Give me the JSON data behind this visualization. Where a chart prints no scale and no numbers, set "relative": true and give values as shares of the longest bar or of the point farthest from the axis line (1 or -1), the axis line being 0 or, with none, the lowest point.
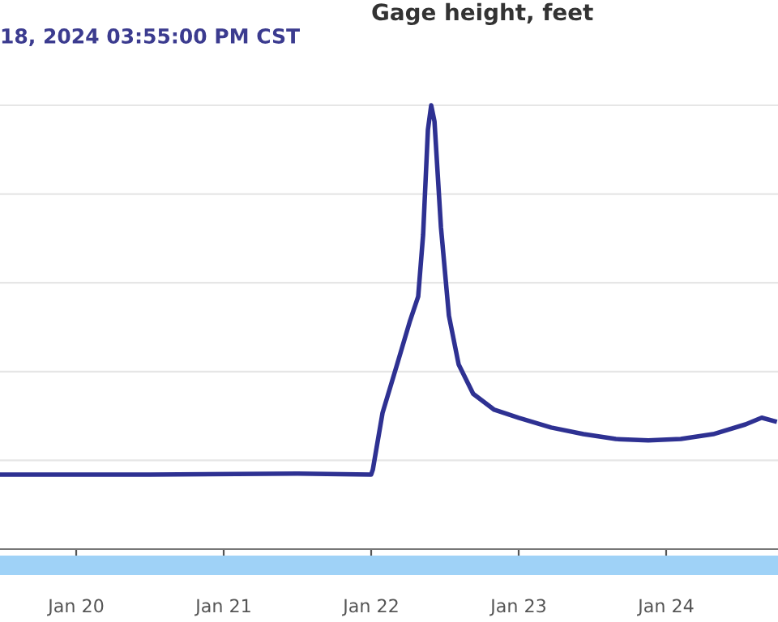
{
  "chart_data": {
    "type": "line",
    "title": "Gage height, feet",
    "subtitle": "18, 2024 03:55:00 PM CST",
    "relative": true,
    "grid": "y",
    "marker": "none",
    "line_style": "solid",
    "xlim": [
      "2024-01-19T11:36",
      "2024-01-24T18:12"
    ],
    "xticks": [
      {
        "value": "2024-01-20",
        "label": "Jan 20"
      },
      {
        "value": "2024-01-21",
        "label": "Jan 21"
      },
      {
        "value": "2024-01-22",
        "label": "Jan 22"
      },
      {
        "value": "2024-01-23",
        "label": "Jan 23"
      },
      {
        "value": "2024-01-24",
        "label": "Jan 24"
      }
    ],
    "x": [
      "2024-01-19T11:36",
      "2024-01-20T12:00",
      "2024-01-21T12:00",
      "2024-01-22T00:00",
      "2024-01-22T00:16",
      "2024-01-22T01:51",
      "2024-01-22T04:13",
      "2024-01-22T06:20",
      "2024-01-22T07:39",
      "2024-01-22T08:27",
      "2024-01-22T09:14",
      "2024-01-22T09:46",
      "2024-01-22T10:18",
      "2024-01-22T11:21",
      "2024-01-22T12:39",
      "2024-01-22T14:14",
      "2024-01-22T16:36",
      "2024-01-22T20:02",
      "2024-01-23T00:00",
      "2024-01-23T05:17",
      "2024-01-23T10:33",
      "2024-01-23T15:49",
      "2024-01-23T21:06",
      "2024-01-24T02:22",
      "2024-01-24T07:39",
      "2024-01-24T12:55",
      "2024-01-24T15:33",
      "2024-01-24T17:40"
    ],
    "series": [
      {
        "color": "#2e3192",
        "values": [
          0.168,
          0.168,
          0.17,
          0.168,
          0.179,
          0.307,
          0.416,
          0.515,
          0.569,
          0.708,
          0.945,
          1.0,
          0.964,
          0.726,
          0.526,
          0.416,
          0.35,
          0.314,
          0.296,
          0.274,
          0.259,
          0.248,
          0.245,
          0.248,
          0.259,
          0.281,
          0.296,
          0.288
        ]
      }
    ]
  }
}
